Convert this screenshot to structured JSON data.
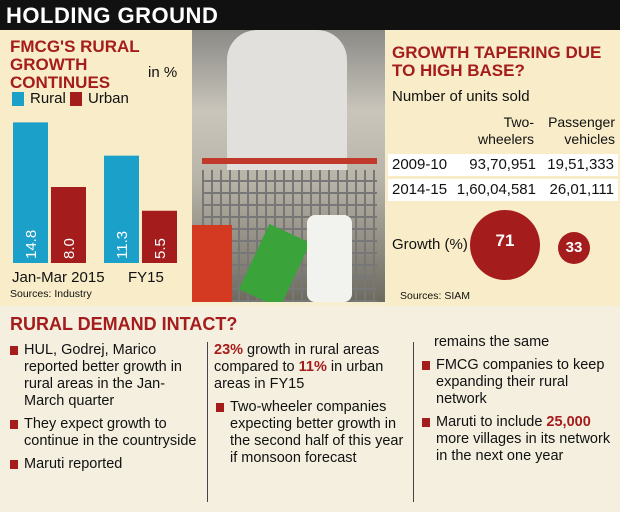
{
  "title": "HOLDING GROUND",
  "colors": {
    "rural": "#1ba0c9",
    "urban": "#a51c1c",
    "header": "#111111"
  },
  "chart_data": [
    {
      "type": "bar",
      "title": "FMCG'S RURAL GROWTH CONTINUES",
      "unit": "in %",
      "categories": [
        "Jan-Mar 2015",
        "FY15"
      ],
      "series": [
        {
          "name": "Rural",
          "values": [
            14.8,
            11.3
          ]
        },
        {
          "name": "Urban",
          "values": [
            8.0,
            5.5
          ]
        }
      ],
      "value_labels": [
        [
          "14.8",
          "11.3"
        ],
        [
          "8.0",
          "5.5"
        ]
      ],
      "source": "Sources: Industry"
    },
    {
      "type": "table",
      "title": "GROWTH TAPERING DUE TO HIGH BASE?",
      "subtitle": "Number of units sold",
      "columns": [
        "Two-wheelers",
        "Passenger vehicles"
      ],
      "rows": [
        {
          "year": "2009-10",
          "values": [
            "93,70,951",
            "19,51,333"
          ]
        },
        {
          "year": "2014-15",
          "values": [
            "1,60,04,581",
            "26,01,111"
          ]
        }
      ],
      "growth_label": "Growth (%)",
      "growth": [
        "71",
        "33"
      ],
      "source": "Sources: SIAM"
    }
  ],
  "bottom": {
    "heading": "RURAL DEMAND INTACT?",
    "col1": [
      "HUL, Godrej, Marico reported better growth in rural areas in the Jan-March quarter",
      "They expect growth to continue in the countryside",
      "Maruti reported"
    ],
    "col2": {
      "p1a": "23%",
      "p1b": " growth in rural areas compared to ",
      "p1c": "11%",
      "p1d": " in urban areas in FY15",
      "b2": "Two-wheeler companies expecting better growth in the second half of this year if monsoon forecast"
    },
    "col3": {
      "cont": "remains the same",
      "b1": "FMCG companies to keep expanding their rural network",
      "b2a": "Maruti to include ",
      "b2b": "25,000",
      "b2c": " more villages in its network in the next one year"
    }
  }
}
